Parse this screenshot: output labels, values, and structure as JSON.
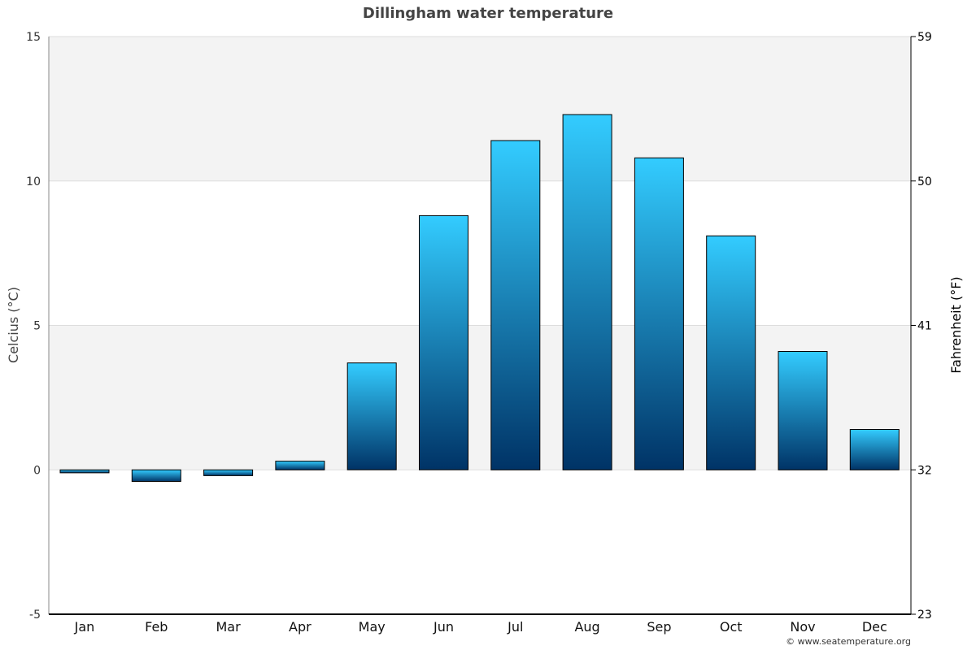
{
  "chart_data": {
    "type": "bar",
    "title": "Dillingham water temperature",
    "categories": [
      "Jan",
      "Feb",
      "Mar",
      "Apr",
      "May",
      "Jun",
      "Jul",
      "Aug",
      "Sep",
      "Oct",
      "Nov",
      "Dec"
    ],
    "values": [
      -0.1,
      -0.4,
      -0.2,
      0.3,
      3.7,
      8.8,
      11.4,
      12.3,
      10.8,
      8.1,
      4.1,
      1.4
    ],
    "ylabel": "Celcius (°C)",
    "ylabel_right": "Fahrenheit (°F)",
    "ylim": [
      -5,
      15
    ],
    "y_ticks": [
      "15",
      "10",
      "5",
      "0",
      "-5"
    ],
    "y_tick_values": [
      15,
      10,
      5,
      0,
      -5
    ],
    "y_right_ticks": [
      "59",
      "50",
      "41",
      "32",
      "23"
    ],
    "grid": true,
    "colors": {
      "bar_top": "#33ccff",
      "bar_bottom": "#003366",
      "band": "#f3f3f3",
      "grid": "#dddddd"
    }
  },
  "credit": "© www.seatemperature.org"
}
